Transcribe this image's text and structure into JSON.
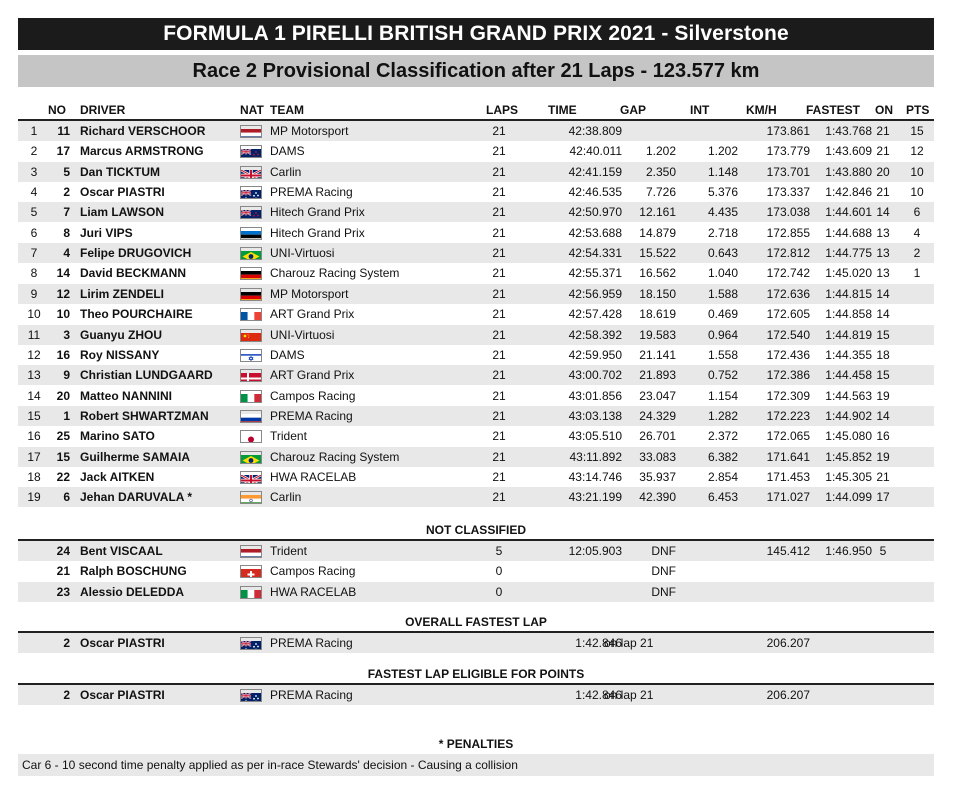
{
  "header": {
    "title": "FORMULA 1 PIRELLI BRITISH GRAND PRIX 2021 - Silverstone",
    "subtitle": "Race 2 Provisional Classification after 21 Laps - 123.577 km"
  },
  "columns": {
    "no": "NO",
    "driver": "DRIVER",
    "nat": "NAT",
    "team": "TEAM",
    "laps": "LAPS",
    "time": "TIME",
    "gap": "GAP",
    "int": "INT",
    "kmh": "KM/H",
    "fastest": "FASTEST",
    "on": "ON",
    "pts": "PTS"
  },
  "results": [
    {
      "pos": "1",
      "no": "11",
      "driver": "Richard VERSCHOOR",
      "flag": "nl",
      "team": "MP Motorsport",
      "laps": "21",
      "time": "42:38.809",
      "gap": "",
      "int": "",
      "kmh": "173.861",
      "fastest": "1:43.768",
      "on": "21",
      "pts": "15"
    },
    {
      "pos": "2",
      "no": "17",
      "driver": "Marcus ARMSTRONG",
      "flag": "nz",
      "team": "DAMS",
      "laps": "21",
      "time": "42:40.011",
      "gap": "1.202",
      "int": "1.202",
      "kmh": "173.779",
      "fastest": "1:43.609",
      "on": "21",
      "pts": "12"
    },
    {
      "pos": "3",
      "no": "5",
      "driver": "Dan TICKTUM",
      "flag": "gb",
      "team": "Carlin",
      "laps": "21",
      "time": "42:41.159",
      "gap": "2.350",
      "int": "1.148",
      "kmh": "173.701",
      "fastest": "1:43.880",
      "on": "20",
      "pts": "10"
    },
    {
      "pos": "4",
      "no": "2",
      "driver": "Oscar PIASTRI",
      "flag": "au",
      "team": "PREMA Racing",
      "laps": "21",
      "time": "42:46.535",
      "gap": "7.726",
      "int": "5.376",
      "kmh": "173.337",
      "fastest": "1:42.846",
      "on": "21",
      "pts": "10"
    },
    {
      "pos": "5",
      "no": "7",
      "driver": "Liam LAWSON",
      "flag": "nz",
      "team": "Hitech Grand Prix",
      "laps": "21",
      "time": "42:50.970",
      "gap": "12.161",
      "int": "4.435",
      "kmh": "173.038",
      "fastest": "1:44.601",
      "on": "14",
      "pts": "6"
    },
    {
      "pos": "6",
      "no": "8",
      "driver": "Juri VIPS",
      "flag": "ee",
      "team": "Hitech Grand Prix",
      "laps": "21",
      "time": "42:53.688",
      "gap": "14.879",
      "int": "2.718",
      "kmh": "172.855",
      "fastest": "1:44.688",
      "on": "13",
      "pts": "4"
    },
    {
      "pos": "7",
      "no": "4",
      "driver": "Felipe DRUGOVICH",
      "flag": "br",
      "team": "UNI-Virtuosi",
      "laps": "21",
      "time": "42:54.331",
      "gap": "15.522",
      "int": "0.643",
      "kmh": "172.812",
      "fastest": "1:44.775",
      "on": "13",
      "pts": "2"
    },
    {
      "pos": "8",
      "no": "14",
      "driver": "David BECKMANN",
      "flag": "de",
      "team": "Charouz Racing System",
      "laps": "21",
      "time": "42:55.371",
      "gap": "16.562",
      "int": "1.040",
      "kmh": "172.742",
      "fastest": "1:45.020",
      "on": "13",
      "pts": "1"
    },
    {
      "pos": "9",
      "no": "12",
      "driver": "Lirim ZENDELI",
      "flag": "de",
      "team": "MP Motorsport",
      "laps": "21",
      "time": "42:56.959",
      "gap": "18.150",
      "int": "1.588",
      "kmh": "172.636",
      "fastest": "1:44.815",
      "on": "14",
      "pts": ""
    },
    {
      "pos": "10",
      "no": "10",
      "driver": "Theo POURCHAIRE",
      "flag": "fr",
      "team": "ART Grand Prix",
      "laps": "21",
      "time": "42:57.428",
      "gap": "18.619",
      "int": "0.469",
      "kmh": "172.605",
      "fastest": "1:44.858",
      "on": "14",
      "pts": ""
    },
    {
      "pos": "11",
      "no": "3",
      "driver": "Guanyu ZHOU",
      "flag": "cn",
      "team": "UNI-Virtuosi",
      "laps": "21",
      "time": "42:58.392",
      "gap": "19.583",
      "int": "0.964",
      "kmh": "172.540",
      "fastest": "1:44.819",
      "on": "15",
      "pts": ""
    },
    {
      "pos": "12",
      "no": "16",
      "driver": "Roy NISSANY",
      "flag": "il",
      "team": "DAMS",
      "laps": "21",
      "time": "42:59.950",
      "gap": "21.141",
      "int": "1.558",
      "kmh": "172.436",
      "fastest": "1:44.355",
      "on": "18",
      "pts": ""
    },
    {
      "pos": "13",
      "no": "9",
      "driver": "Christian LUNDGAARD",
      "flag": "dk",
      "team": "ART Grand Prix",
      "laps": "21",
      "time": "43:00.702",
      "gap": "21.893",
      "int": "0.752",
      "kmh": "172.386",
      "fastest": "1:44.458",
      "on": "15",
      "pts": ""
    },
    {
      "pos": "14",
      "no": "20",
      "driver": "Matteo NANNINI",
      "flag": "it",
      "team": "Campos Racing",
      "laps": "21",
      "time": "43:01.856",
      "gap": "23.047",
      "int": "1.154",
      "kmh": "172.309",
      "fastest": "1:44.563",
      "on": "19",
      "pts": ""
    },
    {
      "pos": "15",
      "no": "1",
      "driver": "Robert SHWARTZMAN",
      "flag": "ru",
      "team": "PREMA Racing",
      "laps": "21",
      "time": "43:03.138",
      "gap": "24.329",
      "int": "1.282",
      "kmh": "172.223",
      "fastest": "1:44.902",
      "on": "14",
      "pts": ""
    },
    {
      "pos": "16",
      "no": "25",
      "driver": "Marino SATO",
      "flag": "jp",
      "team": "Trident",
      "laps": "21",
      "time": "43:05.510",
      "gap": "26.701",
      "int": "2.372",
      "kmh": "172.065",
      "fastest": "1:45.080",
      "on": "16",
      "pts": ""
    },
    {
      "pos": "17",
      "no": "15",
      "driver": "Guilherme SAMAIA",
      "flag": "br",
      "team": "Charouz Racing System",
      "laps": "21",
      "time": "43:11.892",
      "gap": "33.083",
      "int": "6.382",
      "kmh": "171.641",
      "fastest": "1:45.852",
      "on": "19",
      "pts": ""
    },
    {
      "pos": "18",
      "no": "22",
      "driver": "Jack AITKEN",
      "flag": "gb",
      "team": "HWA RACELAB",
      "laps": "21",
      "time": "43:14.746",
      "gap": "35.937",
      "int": "2.854",
      "kmh": "171.453",
      "fastest": "1:45.305",
      "on": "21",
      "pts": ""
    },
    {
      "pos": "19",
      "no": "6",
      "driver": "Jehan DARUVALA *",
      "flag": "in",
      "team": "Carlin",
      "laps": "21",
      "time": "43:21.199",
      "gap": "42.390",
      "int": "6.453",
      "kmh": "171.027",
      "fastest": "1:44.099",
      "on": "17",
      "pts": ""
    }
  ],
  "not_classified": {
    "title": "NOT CLASSIFIED",
    "rows": [
      {
        "no": "24",
        "driver": "Bent VISCAAL",
        "flag": "nl",
        "team": "Trident",
        "laps": "5",
        "time": "12:05.903",
        "gap": "DNF",
        "kmh": "145.412",
        "fastest": "1:46.950",
        "on": "5"
      },
      {
        "no": "21",
        "driver": "Ralph BOSCHUNG",
        "flag": "ch",
        "team": "Campos Racing",
        "laps": "0",
        "time": "",
        "gap": "DNF",
        "kmh": "",
        "fastest": "",
        "on": ""
      },
      {
        "no": "23",
        "driver": "Alessio DELEDDA",
        "flag": "it",
        "team": "HWA RACELAB",
        "laps": "0",
        "time": "",
        "gap": "DNF",
        "kmh": "",
        "fastest": "",
        "on": ""
      }
    ]
  },
  "overall_fastest": {
    "title": "OVERALL FASTEST LAP",
    "no": "2",
    "driver": "Oscar PIASTRI",
    "flag": "au",
    "team": "PREMA Racing",
    "time": "1:42.846",
    "on_lap": "on lap 21",
    "kmh": "206.207"
  },
  "fastest_points": {
    "title": "FASTEST LAP ELIGIBLE FOR POINTS",
    "no": "2",
    "driver": "Oscar PIASTRI",
    "flag": "au",
    "team": "PREMA Racing",
    "time": "1:42.846",
    "on_lap": "on lap 21",
    "kmh": "206.207"
  },
  "penalties": {
    "title": "* PENALTIES",
    "text": "Car 6 - 10 second time penalty applied as per in-race Stewards' decision - Causing a collision"
  }
}
